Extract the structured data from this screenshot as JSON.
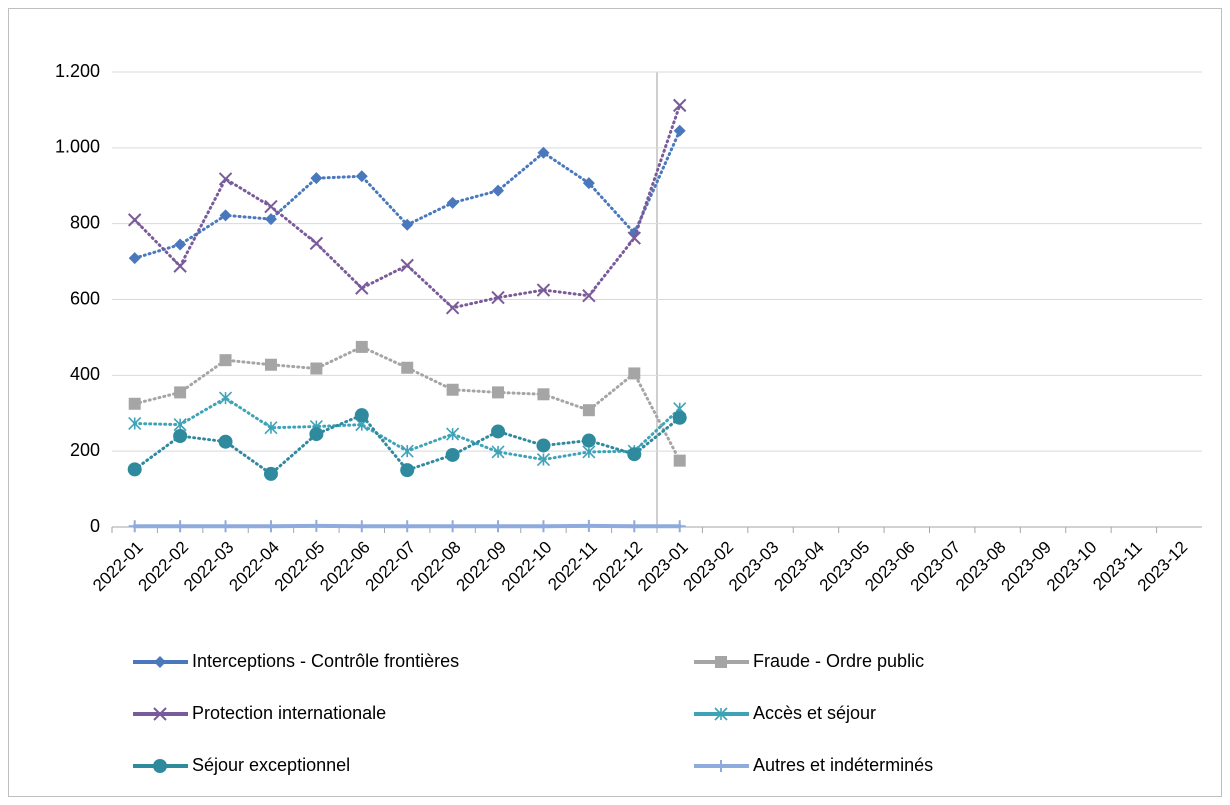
{
  "chart_data": {
    "type": "line",
    "categories": [
      "2022-01",
      "2022-02",
      "2022-03",
      "2022-04",
      "2022-05",
      "2022-06",
      "2022-07",
      "2022-08",
      "2022-09",
      "2022-10",
      "2022-11",
      "2022-12",
      "2023-01",
      "2023-02",
      "2023-03",
      "2023-04",
      "2023-05",
      "2023-06",
      "2023-07",
      "2023-08",
      "2023-09",
      "2023-10",
      "2023-11",
      "2023-12"
    ],
    "ylim": [
      0,
      1200
    ],
    "yticks": [
      0,
      200,
      400,
      600,
      800,
      {
        "value": 1000,
        "label": "1.000"
      },
      {
        "value": 1200,
        "label": "1.200"
      }
    ],
    "grid": true,
    "legend": "bottom",
    "series": [
      {
        "name": "Interceptions - Contrôle frontières",
        "color": "#4a78bd",
        "marker": "diamond",
        "values": [
          709,
          745,
          822,
          812,
          920,
          925,
          797,
          855,
          887,
          987,
          907,
          775,
          1045,
          null,
          null,
          null,
          null,
          null,
          null,
          null,
          null,
          null,
          null,
          null
        ]
      },
      {
        "name": "Fraude - Ordre public",
        "color": "#a5a5a5",
        "marker": "square",
        "values": [
          325,
          355,
          440,
          428,
          418,
          475,
          420,
          362,
          355,
          350,
          308,
          405,
          175,
          null,
          null,
          null,
          null,
          null,
          null,
          null,
          null,
          null,
          null,
          null
        ]
      },
      {
        "name": "Protection internationale",
        "color": "#7a5b9a",
        "marker": "x",
        "values": [
          810,
          688,
          918,
          845,
          748,
          630,
          690,
          578,
          605,
          625,
          610,
          762,
          1112,
          null,
          null,
          null,
          null,
          null,
          null,
          null,
          null,
          null,
          null,
          null
        ]
      },
      {
        "name": "Accès et séjour",
        "color": "#3fa3b8",
        "marker": "star",
        "values": [
          273,
          270,
          340,
          262,
          265,
          270,
          200,
          245,
          198,
          178,
          198,
          200,
          312,
          null,
          null,
          null,
          null,
          null,
          null,
          null,
          null,
          null,
          null,
          null
        ]
      },
      {
        "name": "Séjour exceptionnel",
        "color": "#2f8a9e",
        "marker": "circle",
        "values": [
          152,
          240,
          225,
          140,
          245,
          295,
          150,
          190,
          252,
          215,
          228,
          192,
          288,
          null,
          null,
          null,
          null,
          null,
          null,
          null,
          null,
          null,
          null,
          null
        ]
      },
      {
        "name": "Autres et indéterminés",
        "color": "#8faadc",
        "marker": "plus",
        "values": [
          2,
          2,
          2,
          2,
          3,
          2,
          2,
          2,
          2,
          2,
          3,
          2,
          2,
          null,
          null,
          null,
          null,
          null,
          null,
          null,
          null,
          null,
          null,
          null
        ]
      }
    ]
  }
}
